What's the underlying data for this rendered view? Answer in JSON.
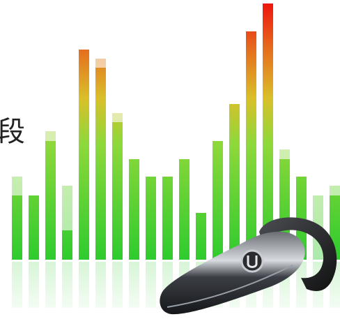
{
  "caption": {
    "text": "段"
  }
}
